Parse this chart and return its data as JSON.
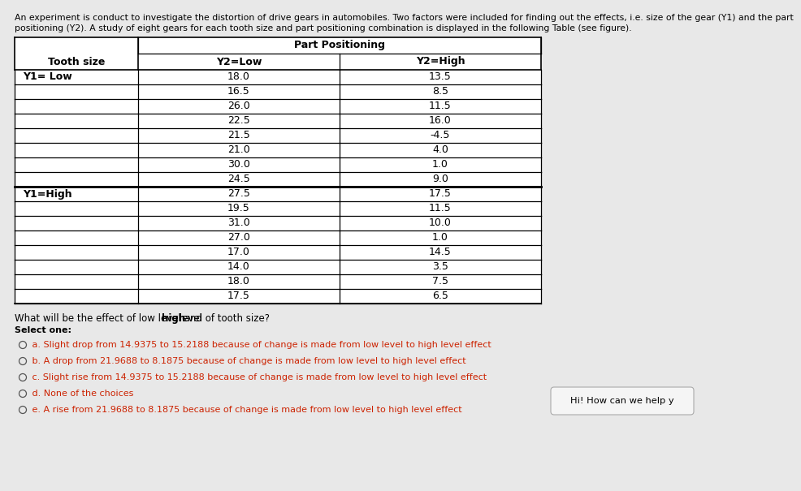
{
  "description_line1": "An experiment is conduct to investigate the distortion of drive gears in automobiles. Two factors were included for finding out the effects, i.e. size of the gear (Y1) and the part",
  "description_line2": "positioning (Y2). A study of eight gears for each tooth size and part positioning combination is displayed in the following Table (see figure).",
  "table_header_top": "Part Positioning",
  "table_col1_header": "Tooth size",
  "table_col2_header": "Y2=Low",
  "table_col3_header": "Y2=High",
  "y1_low_label": "Y1= Low",
  "y1_high_label": "Y1=High",
  "y1_low_col2": [
    18.0,
    16.5,
    26.0,
    22.5,
    21.5,
    21.0,
    30.0,
    24.5
  ],
  "y1_low_col3": [
    13.5,
    8.5,
    11.5,
    16.0,
    -4.5,
    4.0,
    1.0,
    9.0
  ],
  "y1_high_col2": [
    27.5,
    19.5,
    31.0,
    27.0,
    17.0,
    14.0,
    18.0,
    17.5
  ],
  "y1_high_col3": [
    17.5,
    11.5,
    10.0,
    1.0,
    14.5,
    3.5,
    7.5,
    6.5
  ],
  "question_text": "What will be the effect of low level and ",
  "question_text_bold": "high",
  "question_text_end": " level of tooth size?",
  "select_one_text": "Select one:",
  "options": [
    " a. Slight drop from 14.9375 to 15.2188 because of change is made from low level to high level effect",
    " b. A drop from 21.9688 to 8.1875 because of change is made from low level to high level effect",
    " c. Slight rise from 14.9375 to 15.2188 because of change is made from low level to high level effect",
    " d. None of the choices",
    " e. A rise from 21.9688 to 8.1875 because of change is made from low level to high level effect"
  ],
  "chat_bubble_text": "Hi! How can we help y",
  "bg_color": "#e8e8e8",
  "table_bg_color": "#ffffff",
  "table_border_color": "#000000",
  "text_color": "#000000",
  "option_text_color": "#cc2200",
  "desc_font_size": 7.8,
  "table_font_size": 9.0,
  "question_font_size": 8.5,
  "option_font_size": 8.0
}
